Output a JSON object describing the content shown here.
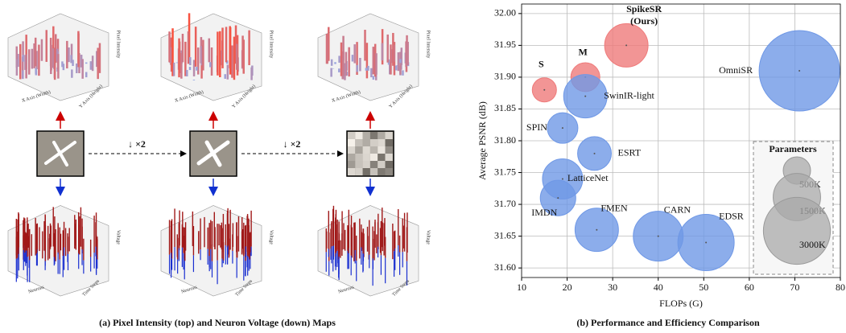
{
  "chart_data": {
    "type": "bubble",
    "x_label": "FLOPs (G)",
    "y_label": "Average PSNR (dB)",
    "xlim": [
      10,
      80
    ],
    "ylim": [
      31.585,
      32.015
    ],
    "xticks": [
      10,
      20,
      30,
      40,
      50,
      60,
      70,
      80
    ],
    "yticks": [
      {
        "value": 31.6,
        "label": "31.60"
      },
      {
        "value": 31.65,
        "label": "31.65"
      },
      {
        "value": 31.7,
        "label": "31.70"
      },
      {
        "value": 31.75,
        "label": "31.75"
      },
      {
        "value": 31.8,
        "label": "31.80"
      },
      {
        "value": 31.85,
        "label": "31.85"
      },
      {
        "value": 31.9,
        "label": "31.90"
      },
      {
        "value": 31.95,
        "label": "31.95"
      },
      {
        "value": 32.0,
        "label": "32.00"
      }
    ],
    "grid": true,
    "points": [
      {
        "name": "S",
        "x": 15,
        "y": 31.88,
        "size": 390,
        "color": "#ef7b7b"
      },
      {
        "name": "M",
        "x": 24,
        "y": 31.9,
        "size": 560,
        "color": "#ef7b7b"
      },
      {
        "name": "SpikeSR",
        "tag": "(Ours)",
        "x": 33,
        "y": 31.95,
        "size": 1260,
        "color": "#ef7b7b"
      },
      {
        "name": "OmniSR",
        "x": 71,
        "y": 31.91,
        "size": 4330,
        "color": "#6f98e6"
      },
      {
        "name": "SwinIR-light",
        "x": 24,
        "y": 31.87,
        "size": 1260,
        "color": "#6f98e6"
      },
      {
        "name": "SPIN",
        "x": 19,
        "y": 31.82,
        "size": 625,
        "color": "#6f98e6"
      },
      {
        "name": "ESRT",
        "x": 26,
        "y": 31.78,
        "size": 760,
        "color": "#6f98e6"
      },
      {
        "name": "LatticeNet",
        "x": 19,
        "y": 31.74,
        "size": 1080,
        "color": "#6f98e6"
      },
      {
        "name": "IMDN",
        "x": 18,
        "y": 31.71,
        "size": 840,
        "color": "#6f98e6"
      },
      {
        "name": "FMEN",
        "x": 26.5,
        "y": 31.66,
        "size": 1260,
        "color": "#6f98e6"
      },
      {
        "name": "CARN",
        "x": 40,
        "y": 31.65,
        "size": 1660,
        "color": "#6f98e6"
      },
      {
        "name": "EDSR",
        "x": 50.5,
        "y": 31.64,
        "size": 2120,
        "color": "#6f98e6"
      }
    ],
    "size_legend": {
      "title": "Parameters",
      "color": "#aaaaaa",
      "entries": [
        {
          "value": 500,
          "label": "500K"
        },
        {
          "value": 1500,
          "label": "1500K"
        },
        {
          "value": 3000,
          "label": "3000K"
        }
      ]
    }
  },
  "left_panel": {
    "x_axis": "X Axis (Width)",
    "y_axis": "Y Axis (Height)",
    "z_axis": "Pixel Intensity",
    "neurons": "Neurons",
    "time_steps": "Time Steps",
    "voltage": "Voltage",
    "downsample": "↓ ×2"
  },
  "captions": [
    "(a) Pixel Intensity (top) and Neuron Voltage (down) Maps",
    "(b) Performance and Efficiency Comparison"
  ]
}
